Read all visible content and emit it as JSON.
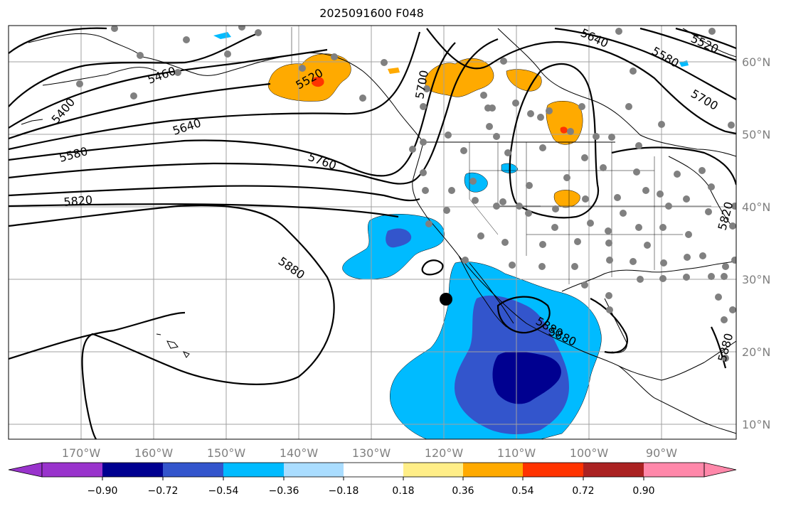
{
  "title": "2025091600 F048",
  "map": {
    "lon_ticks": [
      "170°W",
      "160°W",
      "150°W",
      "140°W",
      "130°W",
      "120°W",
      "110°W",
      "100°W",
      "90°W"
    ],
    "lat_ticks": [
      "60°N",
      "50°N",
      "40°N",
      "30°N",
      "20°N",
      "10°N"
    ],
    "contour_labels": [
      "5400",
      "5460",
      "5520",
      "5580",
      "5640",
      "5700",
      "5760",
      "5820",
      "5880",
      "5580",
      "5520",
      "5640",
      "5700",
      "5820",
      "5880",
      "5880",
      "5880"
    ],
    "colors": {
      "land_outline": "#000000",
      "grid": "#a0a0a0",
      "station_dots": "#808080",
      "marker": "#000000"
    }
  },
  "colorbar": {
    "levels": [
      "−0.90",
      "−0.72",
      "−0.54",
      "−0.36",
      "−0.18",
      "0.18",
      "0.36",
      "0.54",
      "0.72",
      "0.90"
    ],
    "colors": [
      "#9933cc",
      "#000090",
      "#3355cc",
      "#00bbff",
      "#aaddff",
      "#ffffff",
      "#ffee88",
      "#ffaa00",
      "#ff3300",
      "#aa2222",
      "#ff88aa"
    ]
  }
}
